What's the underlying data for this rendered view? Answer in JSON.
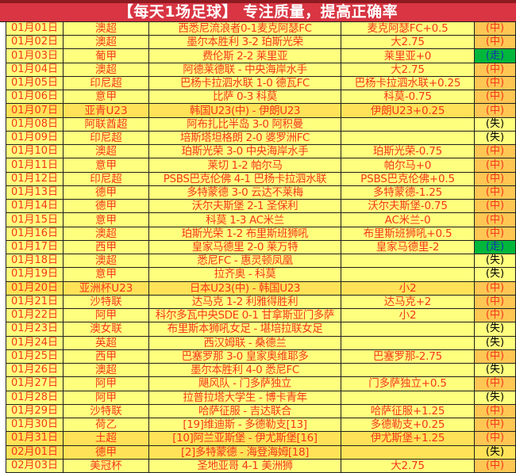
{
  "title": "【每天1场足球】 专注质量，提高正确率",
  "colors": {
    "title_bg": "#d93542",
    "title_top_strip": "#8c1b22",
    "title_text": "#ffffff",
    "row_bg": "#ffff7e",
    "row_bg_highlight": "#ffe257",
    "text_red": "#f5371c",
    "result_win_bg": "#fec653",
    "result_push_bg": "#00b73c",
    "result_push_text": "#1733a8",
    "result_lose_text": "#000000",
    "border": "#1f1f1f"
  },
  "result_types_legend": {
    "win": "(中)",
    "lose": "(失)",
    "push": "(走)"
  },
  "table": {
    "columns": [
      "date",
      "league",
      "match",
      "bet",
      "result"
    ],
    "rows": [
      {
        "date": "01月01日",
        "league": "澳超",
        "match": "西悉尼流浪者0-1麦克阿瑟FC",
        "bet": "麦克阿瑟FC+0.5",
        "result": "(中)",
        "result_type": "win",
        "highlight": false
      },
      {
        "date": "01月02日",
        "league": "澳超",
        "match": "墨尔本胜利 3-2 珀斯光荣",
        "bet": "大2.75",
        "result": "(中)",
        "result_type": "win",
        "highlight": false
      },
      {
        "date": "01月03日",
        "league": "葡甲",
        "match": "费伦斯 2-2 莱里亚",
        "bet": "莱里亚+0",
        "result": "(走)",
        "result_type": "push",
        "highlight": false
      },
      {
        "date": "01月04日",
        "league": "澳超",
        "match": "阿德莱德联 - 中央海岸水手",
        "bet": "大2.75",
        "result": "(中)",
        "result_type": "win",
        "highlight": false
      },
      {
        "date": "01月05日",
        "league": "印尼超",
        "match": "巴杨卡拉泗水联 1-0 德瓦FC",
        "bet": "巴杨卡拉泗水联+0.25",
        "result": "(中)",
        "result_type": "win",
        "highlight": false
      },
      {
        "date": "01月06日",
        "league": "意甲",
        "match": "比萨 0-3 科莫",
        "bet": "科莫-0.75",
        "result": "(中)",
        "result_type": "win",
        "highlight": false
      },
      {
        "date": "01月07日",
        "league": "亚青U23",
        "match": "韩国U23(中) - 伊朗U23",
        "bet": "伊朗U23+0.25",
        "result": "(中)",
        "result_type": "win",
        "highlight": true
      },
      {
        "date": "01月08日",
        "league": "阿联酋超",
        "match": "阿布扎比半岛 3-0 阿积曼",
        "bet": "",
        "result": "(失)",
        "result_type": "lose",
        "highlight": false
      },
      {
        "date": "01月09日",
        "league": "印尼超",
        "match": "培斯塔坦格朗 2-0 婆罗洲FC",
        "bet": "",
        "result": "(失)",
        "result_type": "lose",
        "highlight": false
      },
      {
        "date": "01月10日",
        "league": "澳超",
        "match": "珀斯光荣 3-0 中央海岸水手",
        "bet": "珀斯光荣-0.75",
        "result": "(中)",
        "result_type": "win",
        "highlight": false
      },
      {
        "date": "01月11日",
        "league": "意甲",
        "match": "莱切 1-2 帕尔马",
        "bet": "帕尔马+0",
        "result": "(中)",
        "result_type": "win",
        "highlight": false
      },
      {
        "date": "01月12日",
        "league": "印尼超",
        "match": "PSBS巴克伦佛 4-1 巴杨卡拉泗水联",
        "bet": "PSBS巴克伦佛+0.5",
        "result": "(中)",
        "result_type": "win",
        "highlight": false
      },
      {
        "date": "01月13日",
        "league": "德甲",
        "match": "多特蒙德 3-0 云达不莱梅",
        "bet": "多特蒙德-1.25",
        "result": "(中)",
        "result_type": "win",
        "highlight": false
      },
      {
        "date": "01月14日",
        "league": "德甲",
        "match": "沃尔夫斯堡 2-1 圣保利",
        "bet": "沃尔夫斯堡-0.75",
        "result": "(中)",
        "result_type": "win",
        "highlight": false
      },
      {
        "date": "01月15日",
        "league": "意甲",
        "match": "科莫 1-3 AC米兰",
        "bet": "AC米兰-0",
        "result": "(中)",
        "result_type": "win",
        "highlight": false
      },
      {
        "date": "01月16日",
        "league": "澳超",
        "match": "珀斯光荣 1-2 布里斯班狮吼",
        "bet": "布里斯班狮吼+0.5",
        "result": "(中)",
        "result_type": "win",
        "highlight": false
      },
      {
        "date": "01月17日",
        "league": "西甲",
        "match": "皇家马德里 2-0 莱万特",
        "bet": "皇家马德里-2",
        "result": "(走)",
        "result_type": "push",
        "highlight": false
      },
      {
        "date": "01月18日",
        "league": "澳超",
        "match": "悉尼FC - 惠灵顿凤凰",
        "bet": "",
        "result": "(失)",
        "result_type": "lose",
        "highlight": false
      },
      {
        "date": "01月19日",
        "league": "意甲",
        "match": "拉齐奥 - 科莫",
        "bet": "",
        "result": "(失)",
        "result_type": "lose",
        "highlight": false
      },
      {
        "date": "01月20日",
        "league": "亚洲杯U23",
        "match": "日本U23(中) - 韩国U23",
        "bet": "小2",
        "result": "(中)",
        "result_type": "win",
        "highlight": true
      },
      {
        "date": "01月21日",
        "league": "沙特联",
        "match": "达马克 1-2 利雅得胜利",
        "bet": "达马克+2",
        "result": "(中)",
        "result_type": "win",
        "highlight": false
      },
      {
        "date": "01月22日",
        "league": "阿甲",
        "match": "科尔多瓦中央SDE 0-1 甘拿斯亚门多萨",
        "bet": "小2",
        "result": "(中)",
        "result_type": "win",
        "highlight": false
      },
      {
        "date": "01月23日",
        "league": "澳女联",
        "match": "布里斯本狮吼女足 - 堪培拉联女足",
        "bet": "",
        "result": "(失)",
        "result_type": "lose",
        "highlight": false
      },
      {
        "date": "01月24日",
        "league": "英超",
        "match": "西汉姆联 - 桑德兰",
        "bet": "",
        "result": "(失)",
        "result_type": "lose",
        "highlight": false
      },
      {
        "date": "01月25日",
        "league": "西甲",
        "match": "巴塞罗那 3-0 皇家奥维耶多",
        "bet": "巴塞罗那-2.75",
        "result": "(中)",
        "result_type": "win",
        "highlight": false
      },
      {
        "date": "01月26日",
        "league": "澳超",
        "match": "墨尔本胜利 4-0 悉尼FC",
        "bet": "",
        "result": "(失)",
        "result_type": "lose",
        "highlight": false
      },
      {
        "date": "01月27日",
        "league": "阿甲",
        "match": "飓风队 - 门多萨独立",
        "bet": "门多萨独立+0.5",
        "result": "(中)",
        "result_type": "win",
        "highlight": false
      },
      {
        "date": "01月28日",
        "league": "阿甲",
        "match": "拉普拉塔大学生 - 博卡青年",
        "bet": "",
        "result": "(失)",
        "result_type": "lose",
        "highlight": false
      },
      {
        "date": "01月29日",
        "league": "沙特联",
        "match": "哈萨征服 - 吉达联合",
        "bet": "哈萨征服+1.25",
        "result": "(中)",
        "result_type": "win",
        "highlight": false
      },
      {
        "date": "01月30日",
        "league": "荷乙",
        "match": "[19]维迪斯 - 多德勒支[13]",
        "bet": "多德勒支+0.25",
        "result": "(中)",
        "result_type": "win",
        "highlight": false
      },
      {
        "date": "01月31日",
        "league": "土超",
        "match": "[10]阿兰亚斯堡 - 伊尤斯堡[16]",
        "bet": "伊尤斯堡+1.25",
        "result": "(中)",
        "result_type": "win",
        "highlight": true
      },
      {
        "date": "02月01日",
        "league": "德甲",
        "match": "[2]多特蒙德 - 海登海姆[18]",
        "bet": "",
        "result": "(失)",
        "result_type": "lose",
        "highlight": true
      },
      {
        "date": "02月03日",
        "league": "美冠杯",
        "match": "圣地亚哥 4-1 美洲狮",
        "bet": "大2.75",
        "result": "(中)",
        "result_type": "win",
        "highlight": false
      }
    ]
  }
}
